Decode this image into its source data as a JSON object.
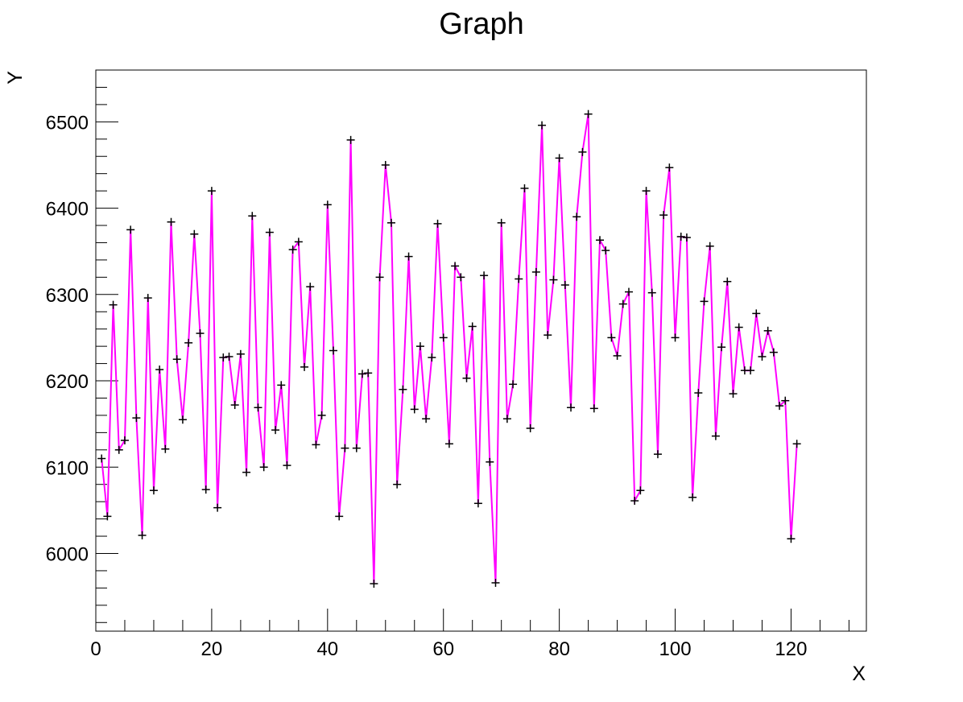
{
  "chart_data": {
    "type": "line",
    "title": "Graph",
    "xlabel": "X",
    "ylabel": "Y",
    "xlim": [
      0,
      133
    ],
    "ylim": [
      5910,
      6560
    ],
    "x_ticks": [
      0,
      20,
      40,
      60,
      80,
      100,
      120
    ],
    "y_ticks": [
      6000,
      6100,
      6200,
      6300,
      6400,
      6500
    ],
    "grid": false,
    "legend": "none",
    "line_color": "#ff00ff",
    "marker_color": "#000000",
    "marker": "plus",
    "series": [
      {
        "x": [
          1,
          2,
          3,
          4,
          5,
          6,
          7,
          8,
          9,
          10,
          11,
          12,
          13,
          14,
          15,
          16,
          17,
          18,
          19,
          20,
          21,
          22,
          23,
          24,
          25,
          26,
          27,
          28,
          29,
          30,
          31,
          32,
          33,
          34,
          35,
          36,
          37,
          38,
          39,
          40,
          41,
          42,
          43,
          44,
          45,
          46,
          47,
          48,
          49,
          50,
          51,
          52,
          53,
          54,
          55,
          56,
          57,
          58,
          59,
          60,
          61,
          62,
          63,
          64,
          65,
          66,
          67,
          68,
          69,
          70,
          71,
          72,
          73,
          74,
          75,
          76,
          77,
          78,
          79,
          80,
          81,
          82,
          83,
          84,
          85,
          86,
          87,
          88,
          89,
          90,
          91,
          92,
          93,
          94,
          95,
          96,
          97,
          98,
          99,
          100,
          101,
          102,
          103,
          104,
          105,
          106,
          107,
          108,
          109,
          110,
          111,
          112,
          113,
          114,
          115,
          116,
          117,
          118,
          119,
          120,
          121
        ],
        "y": [
          6110,
          6043,
          6288,
          6120,
          6131,
          6375,
          6157,
          6021,
          6296,
          6073,
          6213,
          6121,
          6384,
          6225,
          6155,
          6244,
          6370,
          6255,
          6074,
          6420,
          6053,
          6227,
          6228,
          6172,
          6231,
          6094,
          6391,
          6169,
          6100,
          6372,
          6143,
          6195,
          6102,
          6352,
          6361,
          6216,
          6309,
          6126,
          6160,
          6404,
          6235,
          6043,
          6122,
          6479,
          6122,
          6208,
          6209,
          5965,
          6320,
          6450,
          6383,
          6080,
          6190,
          6344,
          6167,
          6240,
          6156,
          6227,
          6382,
          6250,
          6127,
          6333,
          6320,
          6203,
          6263,
          6058,
          6322,
          6106,
          5966,
          6383,
          6156,
          6196,
          6318,
          6423,
          6145,
          6326,
          6496,
          6253,
          6317,
          6458,
          6311,
          6169,
          6390,
          6465,
          6509,
          6168,
          6363,
          6351,
          6250,
          6229,
          6289,
          6303,
          6061,
          6073,
          6420,
          6302,
          6115,
          6392,
          6447,
          6250,
          6367,
          6366,
          6065,
          6186,
          6292,
          6356,
          6136,
          6239,
          6315,
          6185,
          6262,
          6212,
          6212,
          6278,
          6228,
          6258,
          6233,
          6171,
          6177,
          6017,
          6127
        ]
      }
    ]
  }
}
